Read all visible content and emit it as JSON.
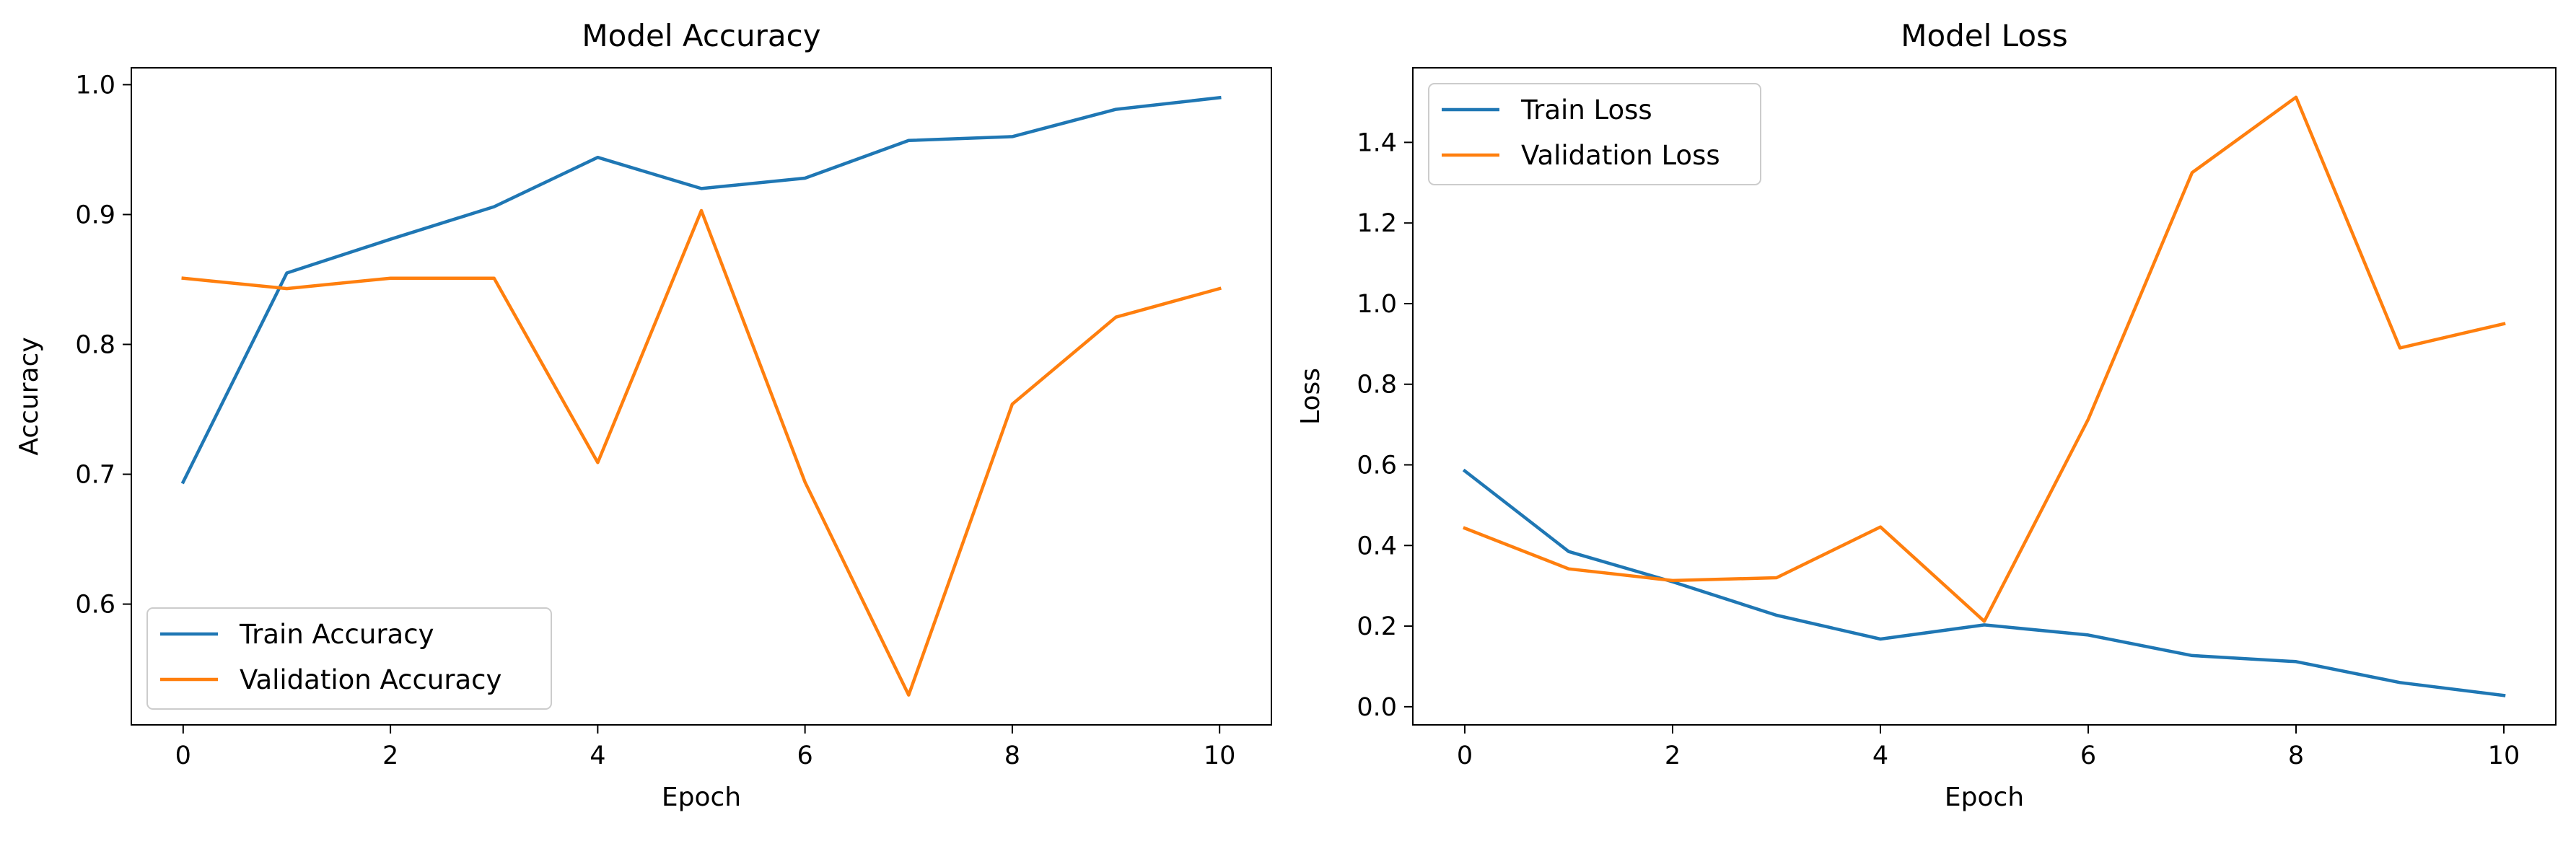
{
  "chart_data": [
    {
      "type": "line",
      "title": "Model Accuracy",
      "xlabel": "Epoch",
      "ylabel": "Accuracy",
      "x": [
        0,
        1,
        2,
        3,
        4,
        5,
        6,
        7,
        8,
        9,
        10
      ],
      "xlim": [
        -0.5,
        10.5
      ],
      "ylim": [
        0.507,
        1.013
      ],
      "xticks": [
        0,
        2,
        4,
        6,
        8,
        10
      ],
      "yticks": [
        0.6,
        0.7,
        0.8,
        0.9,
        1.0
      ],
      "ytick_labels": [
        "0.6",
        "0.7",
        "0.8",
        "0.9",
        "1.0"
      ],
      "legend_loc": "lower-left",
      "grid": false,
      "series": [
        {
          "name": "Train Accuracy",
          "color": "#1f77b4",
          "values": [
            0.694,
            0.855,
            0.881,
            0.906,
            0.944,
            0.92,
            0.928,
            0.957,
            0.96,
            0.981,
            0.99
          ]
        },
        {
          "name": "Validation Accuracy",
          "color": "#ff7f0e",
          "values": [
            0.851,
            0.843,
            0.851,
            0.851,
            0.709,
            0.903,
            0.694,
            0.53,
            0.754,
            0.821,
            0.843
          ]
        }
      ]
    },
    {
      "type": "line",
      "title": "Model Loss",
      "xlabel": "Epoch",
      "ylabel": "Loss",
      "x": [
        0,
        1,
        2,
        3,
        4,
        5,
        6,
        7,
        8,
        9,
        10
      ],
      "xlim": [
        -0.5,
        10.5
      ],
      "ylim": [
        -0.045,
        1.585
      ],
      "xticks": [
        0,
        2,
        4,
        6,
        8,
        10
      ],
      "yticks": [
        0.0,
        0.2,
        0.4,
        0.6,
        0.8,
        1.0,
        1.2,
        1.4
      ],
      "ytick_labels": [
        "0.0",
        "0.2",
        "0.4",
        "0.6",
        "0.8",
        "1.0",
        "1.2",
        "1.4"
      ],
      "legend_loc": "upper-left",
      "grid": false,
      "series": [
        {
          "name": "Train Loss",
          "color": "#1f77b4",
          "values": [
            0.585,
            0.385,
            0.31,
            0.227,
            0.168,
            0.203,
            0.178,
            0.127,
            0.112,
            0.06,
            0.028
          ]
        },
        {
          "name": "Validation Loss",
          "color": "#ff7f0e",
          "values": [
            0.443,
            0.342,
            0.313,
            0.32,
            0.446,
            0.212,
            0.713,
            1.325,
            1.512,
            0.89,
            0.95
          ]
        }
      ]
    }
  ]
}
